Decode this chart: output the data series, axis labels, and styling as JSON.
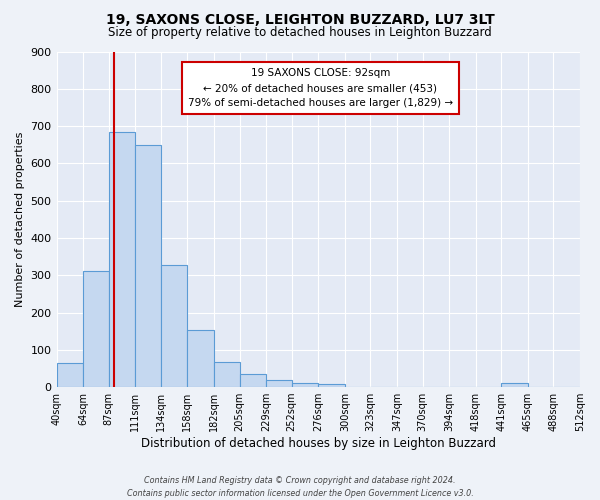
{
  "title_line1": "19, SAXONS CLOSE, LEIGHTON BUZZARD, LU7 3LT",
  "title_line2": "Size of property relative to detached houses in Leighton Buzzard",
  "xlabel": "Distribution of detached houses by size in Leighton Buzzard",
  "ylabel": "Number of detached properties",
  "bin_labels": [
    "40sqm",
    "64sqm",
    "87sqm",
    "111sqm",
    "134sqm",
    "158sqm",
    "182sqm",
    "205sqm",
    "229sqm",
    "252sqm",
    "276sqm",
    "300sqm",
    "323sqm",
    "347sqm",
    "370sqm",
    "394sqm",
    "418sqm",
    "441sqm",
    "465sqm",
    "488sqm",
    "512sqm"
  ],
  "bin_edges": [
    40,
    64,
    87,
    111,
    134,
    158,
    182,
    205,
    229,
    252,
    276,
    300,
    323,
    347,
    370,
    394,
    418,
    441,
    465,
    488,
    512
  ],
  "bar_heights": [
    65,
    310,
    685,
    650,
    327,
    153,
    68,
    35,
    20,
    12,
    8,
    0,
    0,
    0,
    0,
    0,
    0,
    10,
    0,
    0,
    0
  ],
  "bar_color": "#c5d8f0",
  "bar_edge_color": "#5b9bd5",
  "property_size": 92,
  "vline_color": "#cc0000",
  "annotation_line1": "19 SAXONS CLOSE: 92sqm",
  "annotation_line2": "← 20% of detached houses are smaller (453)",
  "annotation_line3": "79% of semi-detached houses are larger (1,829) →",
  "annotation_box_color": "#ffffff",
  "annotation_box_edge": "#cc0000",
  "ylim": [
    0,
    900
  ],
  "yticks": [
    0,
    100,
    200,
    300,
    400,
    500,
    600,
    700,
    800,
    900
  ],
  "background_color": "#eef2f8",
  "plot_bg_color": "#e4eaf5",
  "grid_color": "#ffffff",
  "footer_line1": "Contains HM Land Registry data © Crown copyright and database right 2024.",
  "footer_line2": "Contains public sector information licensed under the Open Government Licence v3.0."
}
